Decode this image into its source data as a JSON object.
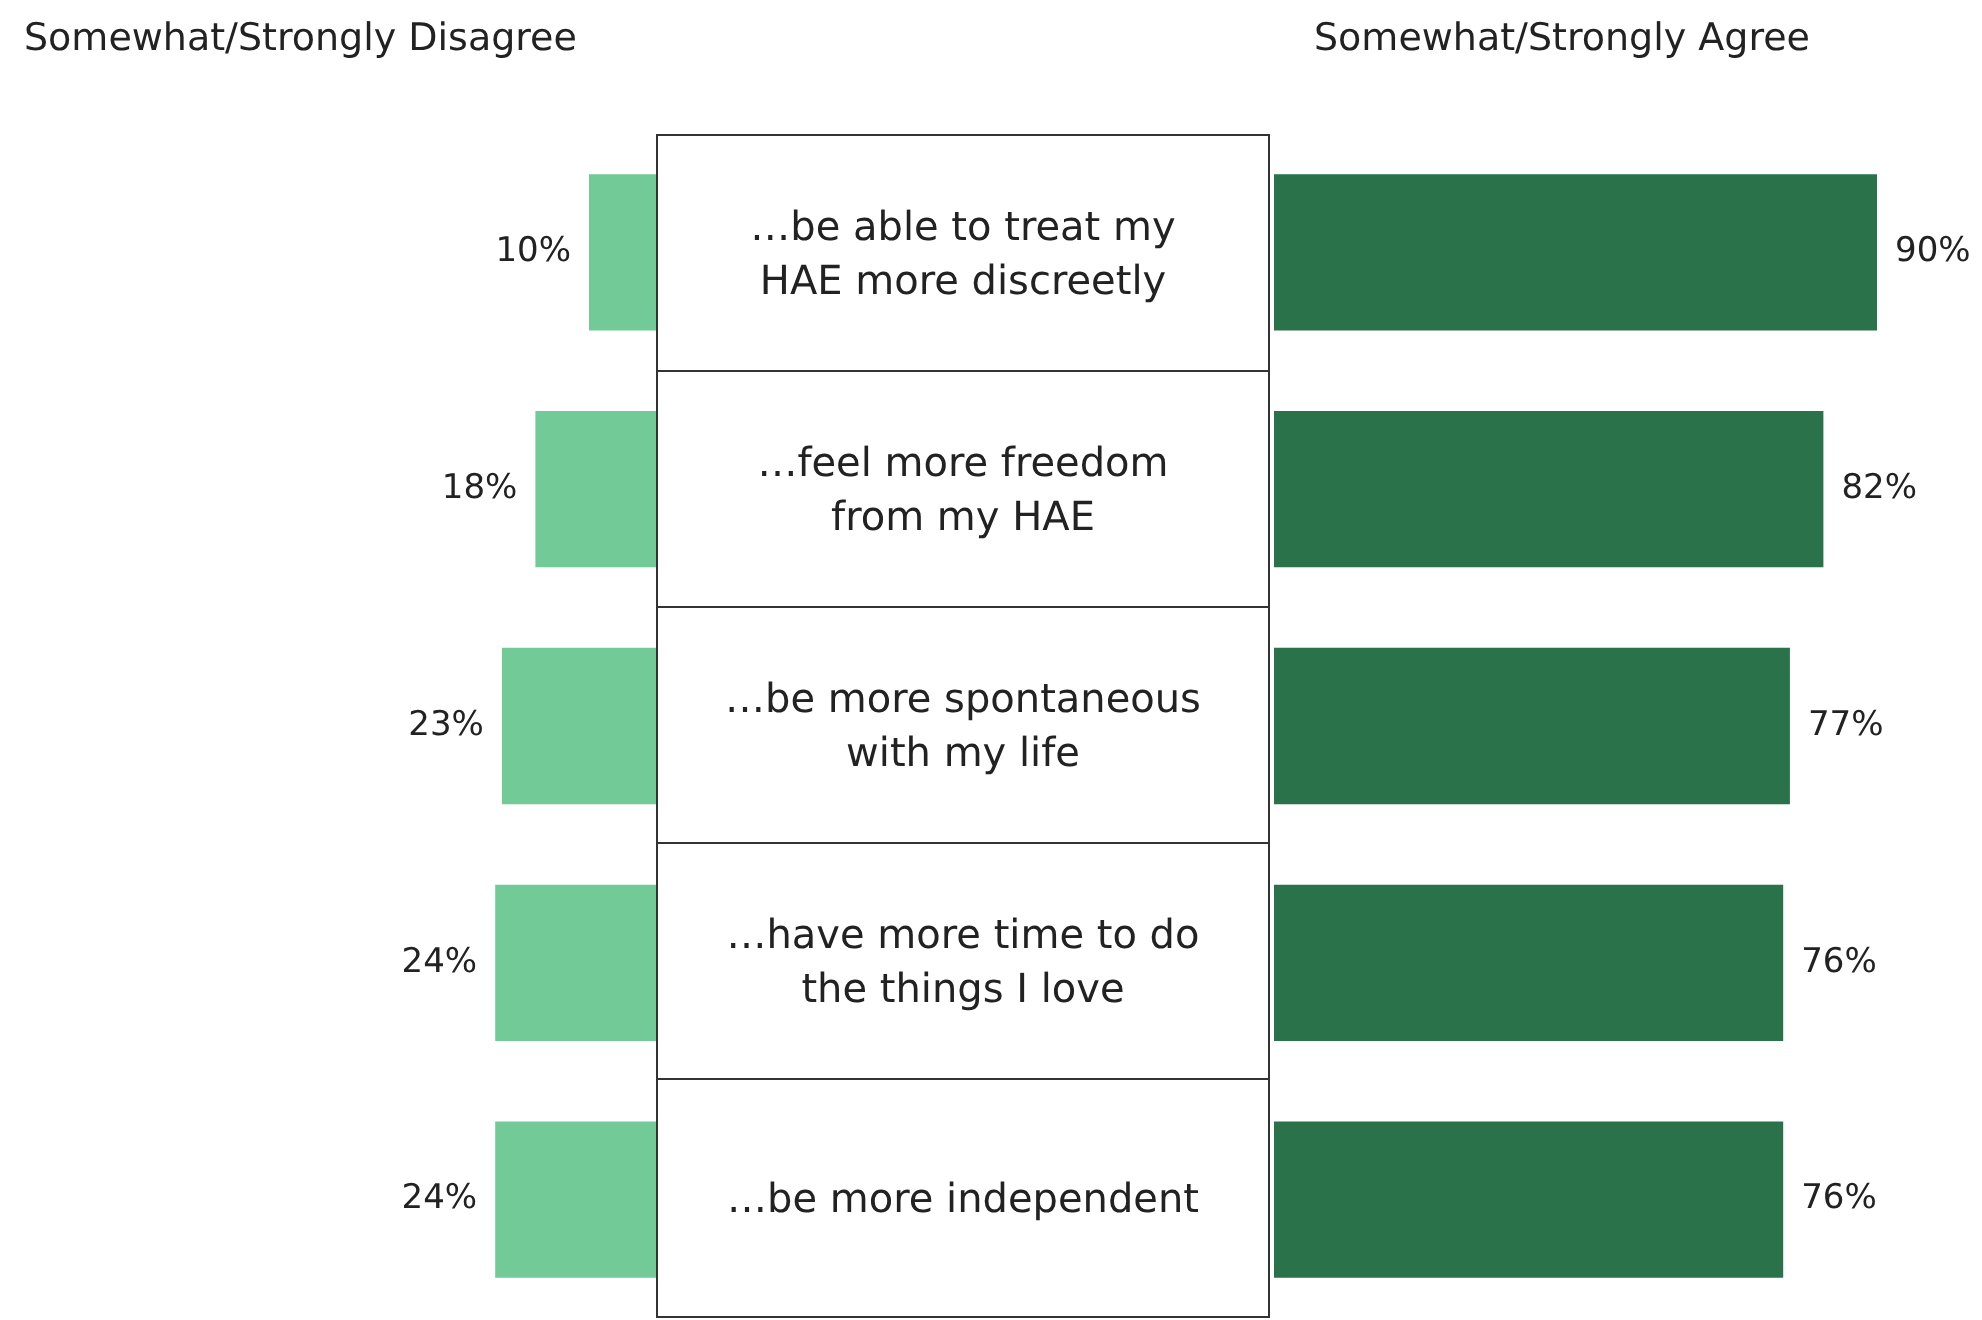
{
  "chart_data": [
    {
      "type": "bar",
      "orientation": "horizontal",
      "categories": [
        "…be able to treat my HAE more discreetly",
        "…feel more freedom from my HAE",
        "…be more spontaneous with my life",
        "…have more time to do the things I love",
        "…be more independent"
      ],
      "series": [
        {
          "name": "Somewhat/Strongly Disagree",
          "color": "#72cb96",
          "values": [
            10,
            18,
            23,
            24,
            24
          ],
          "value_labels": [
            "10%",
            "18%",
            "23%",
            "24%",
            "24%"
          ]
        }
      ],
      "legend": false
    },
    {
      "type": "bar",
      "orientation": "horizontal",
      "categories": [
        null,
        null,
        null,
        null,
        null
      ],
      "series": [
        {
          "name": "Somewhat/Strongly Agree",
          "color": "#2a724a",
          "values": [
            90,
            82,
            77,
            76,
            76
          ],
          "value_labels": [
            "90%",
            "82%",
            "77%",
            "76%",
            "76%"
          ]
        }
      ],
      "tick_labels": false,
      "legend": false
    }
  ]
}
